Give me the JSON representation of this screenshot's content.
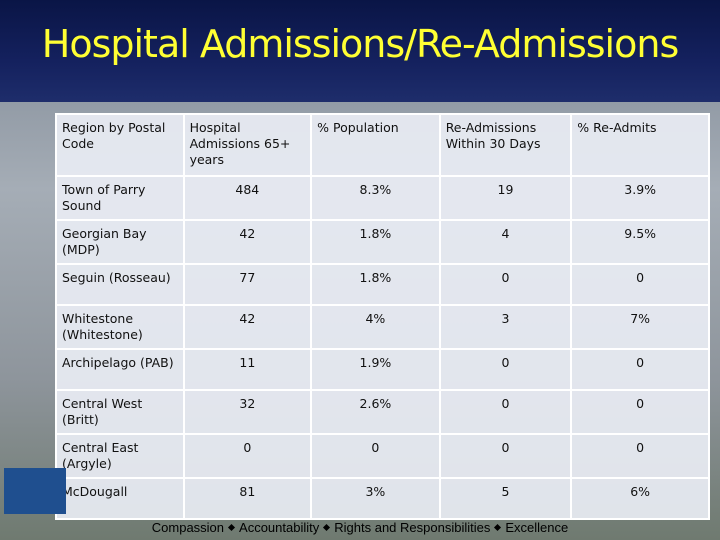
{
  "header": {
    "title": "Hospital Admissions/Re-Admissions"
  },
  "table": {
    "columns": [
      "Region by Postal Code",
      "Hospital Admissions 65+ years",
      "% Population",
      "Re-Admissions Within 30 Days",
      "% Re-Admits"
    ],
    "rows": [
      [
        "Town of Parry Sound",
        "484",
        "8.3%",
        "19",
        "3.9%"
      ],
      [
        "Georgian Bay (MDP)",
        "42",
        "1.8%",
        "4",
        "9.5%"
      ],
      [
        "Seguin (Rosseau)",
        "77",
        "1.8%",
        "0",
        "0"
      ],
      [
        "Whitestone (Whitestone)",
        "42",
        "4%",
        "3",
        "7%"
      ],
      [
        "Archipelago (PAB)",
        "11",
        "1.9%",
        "0",
        "0"
      ],
      [
        "Central West (Britt)",
        "32",
        "2.6%",
        "0",
        "0"
      ],
      [
        "Central East (Argyle)",
        "0",
        "0",
        "0",
        "0"
      ],
      [
        "McDougall",
        "81",
        "3%",
        "5",
        "6%"
      ]
    ]
  },
  "footer": {
    "values": [
      "Compassion",
      "Accountability",
      "Rights and Responsibilities",
      "Excellence"
    ]
  }
}
